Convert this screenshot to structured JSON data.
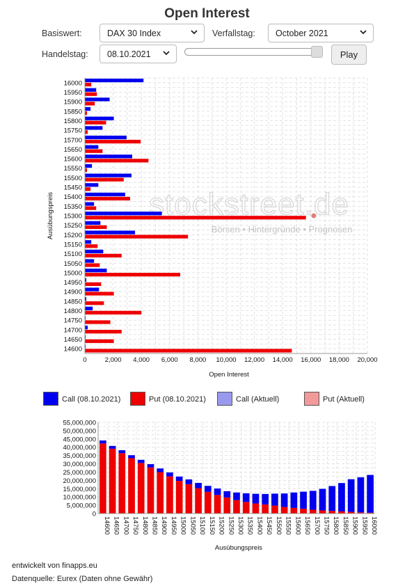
{
  "page": {
    "title": "Open Interest",
    "basiswert_label": "Basiswert:",
    "basiswert_value": "DAX 30 Index",
    "verfallstag_label": "Verfallstag:",
    "verfallstag_value": "October 2021",
    "handelstag_label": "Handelstag:",
    "handelstag_value": "08.10.2021",
    "play_label": "Play",
    "slider_position": 1.0,
    "watermark": "stockstreet.de",
    "watermark_tagline": "Börsen • Hintergründe • Prognosen",
    "footer_line1": "entwickelt von finapps.eu",
    "footer_line2": "Datenquelle: Eurex (Daten ohne Gewähr)"
  },
  "legend": [
    {
      "label": "Call (08.10.2021)",
      "color": "#0000ee"
    },
    {
      "label": "Put (08.10.2021)",
      "color": "#ee0000"
    },
    {
      "label": "Call (Aktuell)",
      "color": "#9999ee"
    },
    {
      "label": "Put (Aktuell)",
      "color": "#f29999"
    }
  ],
  "chart_data": [
    {
      "type": "bar",
      "orientation": "horizontal",
      "xlabel": "Open Interest",
      "ylabel": "Ausübungspreis",
      "xlim": [
        0,
        20000
      ],
      "xticks": [
        "0",
        "2,000",
        "4,000",
        "6,000",
        "8,000",
        "10,000",
        "12,000",
        "14,000",
        "16,000",
        "18,000",
        "20,000"
      ],
      "grid": true,
      "categories": [
        "16000",
        "15950",
        "15900",
        "15850",
        "15800",
        "15750",
        "15700",
        "15650",
        "15600",
        "15550",
        "15500",
        "15450",
        "15400",
        "15350",
        "15300",
        "15250",
        "15200",
        "15150",
        "15100",
        "15050",
        "15000",
        "14950",
        "14900",
        "14850",
        "14800",
        "14750",
        "14700",
        "14650",
        "14600"
      ],
      "series": [
        {
          "name": "Call (08.10.2021)",
          "color": "#0000ee",
          "values": [
            4150,
            800,
            1750,
            400,
            2050,
            1250,
            2950,
            950,
            3350,
            500,
            3300,
            950,
            2850,
            650,
            5450,
            1100,
            3550,
            450,
            1300,
            650,
            1550,
            100,
            1000,
            100,
            550,
            50,
            200,
            50,
            50
          ]
        },
        {
          "name": "Put (08.10.2021)",
          "color": "#ee0000",
          "values": [
            450,
            850,
            700,
            150,
            1500,
            200,
            3950,
            1250,
            4500,
            150,
            2750,
            400,
            3200,
            800,
            15650,
            1550,
            7300,
            900,
            2600,
            1050,
            6750,
            1150,
            2050,
            1350,
            4000,
            1800,
            2600,
            2050,
            14650
          ]
        }
      ]
    },
    {
      "type": "bar",
      "stacked": true,
      "xlabel": "Ausübungspreis",
      "ylabel": "",
      "ylim": [
        0,
        55000000
      ],
      "yticks": [
        "0",
        "5,000,000",
        "10,000,000",
        "15,000,000",
        "20,000,000",
        "25,000,000",
        "30,000,000",
        "35,000,000",
        "40,000,000",
        "45,000,000",
        "50,000,000",
        "55,000,000"
      ],
      "grid": true,
      "categories": [
        "14600",
        "14650",
        "14700",
        "14750",
        "14800",
        "14850",
        "14900",
        "14950",
        "15000",
        "15050",
        "15100",
        "15150",
        "15200",
        "15250",
        "15300",
        "15350",
        "15400",
        "15450",
        "15500",
        "15550",
        "15600",
        "15650",
        "15700",
        "15750",
        "15800",
        "15850",
        "15900",
        "15950",
        "16000"
      ],
      "series": [
        {
          "name": "Put (08.10.2021)",
          "color": "#ee0000",
          "values": [
            42300000,
            39100000,
            36400000,
            33400000,
            30500000,
            27800000,
            25000000,
            22400000,
            19700000,
            17700000,
            15300000,
            13100000,
            11200000,
            9700000,
            8100000,
            7000000,
            6100000,
            5500000,
            4800000,
            4000000,
            3400000,
            2900000,
            2300000,
            1900000,
            1600000,
            1300000,
            1000000,
            700000,
            500000
          ]
        },
        {
          "name": "Call (08.10.2021)",
          "color": "#0000ee",
          "values": [
            1800,
            1700,
            1800,
            1800,
            1900,
            2000,
            2200,
            2400,
            2600,
            2900,
            3200,
            3600,
            3900,
            3800,
            4600,
            5200,
            5800,
            6300,
            7200,
            8100,
            9300,
            10300,
            11400,
            13000,
            15000,
            17100,
            19700,
            21200,
            22800
          ]
        }
      ],
      "call_values_millions_note": ""
    }
  ]
}
